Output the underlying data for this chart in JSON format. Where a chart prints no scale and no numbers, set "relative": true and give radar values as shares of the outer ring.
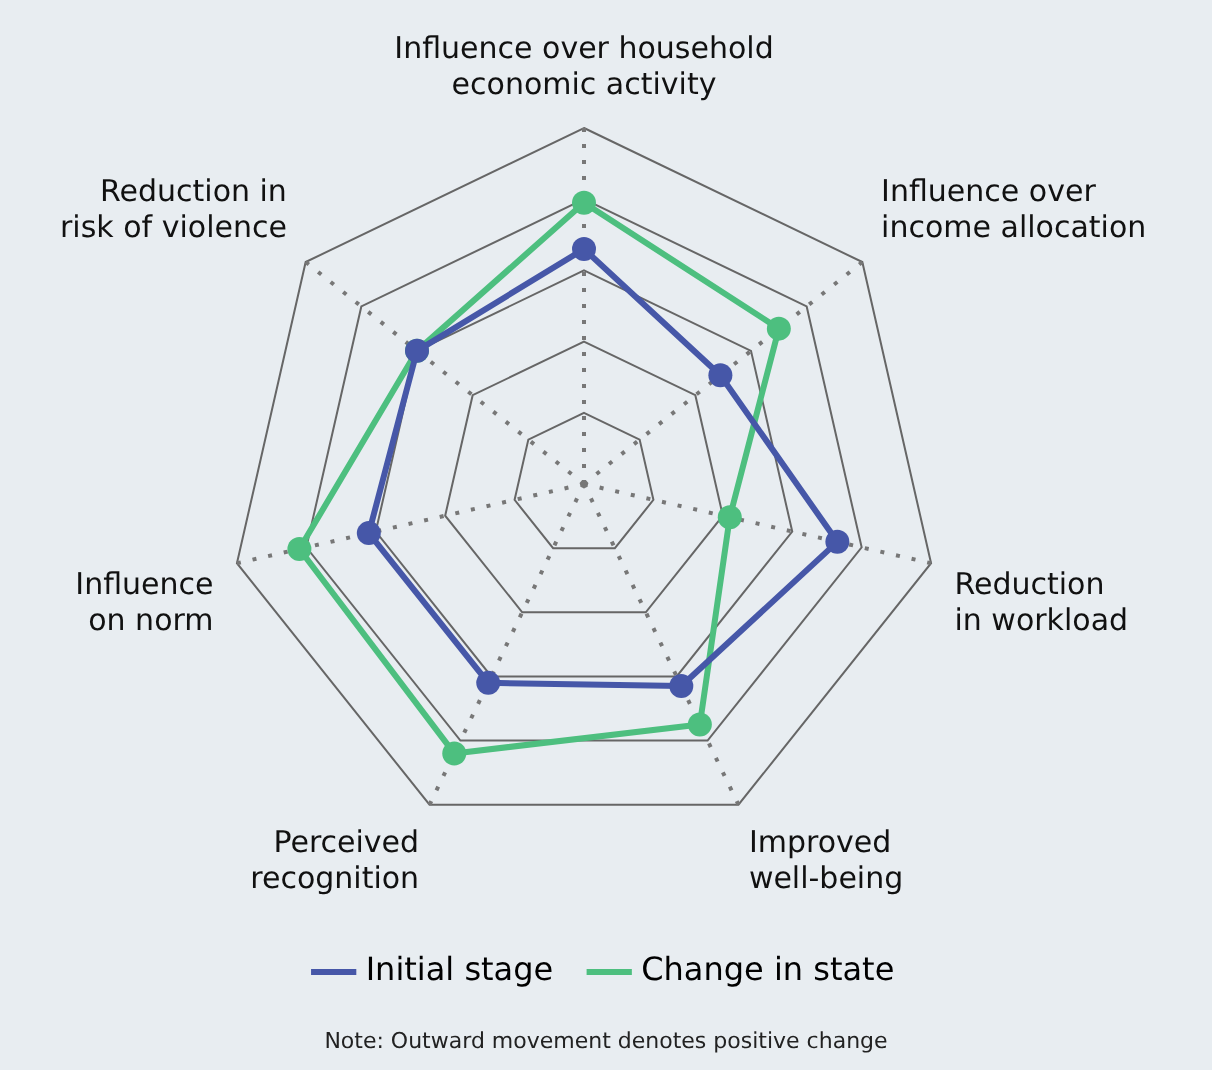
{
  "chart_data": {
    "type": "radar",
    "relative": true,
    "categories": [
      "Influence over household economic activity",
      "Influence over income allocation",
      "Reduction in workload",
      "Improved well-being",
      "Perceived recognition",
      "Influence on norm",
      "Reduction in risk of violence"
    ],
    "series": [
      {
        "name": "Initial stage",
        "color": "#4657a8",
        "values": [
          0.66,
          0.49,
          0.73,
          0.63,
          0.62,
          0.62,
          0.6
        ]
      },
      {
        "name": "Change in state",
        "color": "#4dbf7f",
        "values": [
          0.79,
          0.7,
          0.42,
          0.75,
          0.84,
          0.82,
          0.6
        ]
      }
    ],
    "legend": "bottom",
    "marker": "circle",
    "line_style": "solid",
    "annotations": [
      "Note: Outward movement denotes positive change"
    ]
  }
}
